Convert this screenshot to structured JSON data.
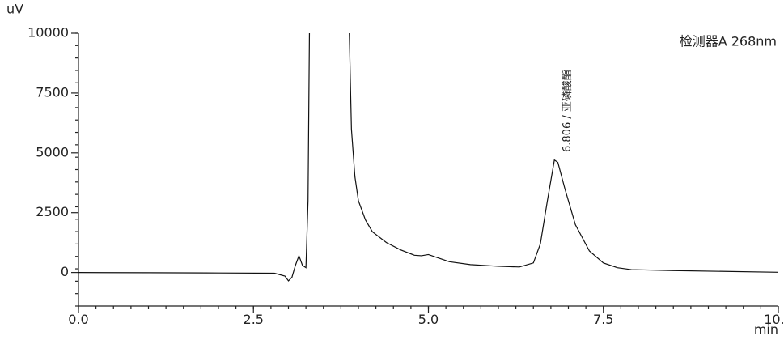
{
  "chart_data": {
    "type": "line",
    "y_label": "uV",
    "x_label": "min",
    "detector": "检测器A 268nm",
    "annotation": {
      "text": "6.806 / 亚磷酸酯",
      "x": 6.806
    },
    "xlim": [
      0,
      10
    ],
    "ylim": [
      -1400,
      10000
    ],
    "xticks": [
      {
        "value": 0,
        "label": "0.0"
      },
      2.5,
      {
        "value": 5,
        "label": "5.0"
      },
      7.5,
      {
        "value": 10,
        "label": "10.0"
      }
    ],
    "yticks": [
      0,
      2500,
      5000,
      7500,
      10000
    ],
    "series": [
      {
        "color": "#111111",
        "x": [
          0,
          1,
          2,
          2.8,
          2.95,
          3.0,
          3.05,
          3.1,
          3.15,
          3.2,
          3.25,
          3.28,
          3.3,
          3.6,
          3.87,
          3.9,
          3.95,
          4.0,
          4.1,
          4.2,
          4.4,
          4.6,
          4.8,
          4.9,
          5.0,
          5.1,
          5.3,
          5.6,
          6.0,
          6.3,
          6.5,
          6.6,
          6.7,
          6.8,
          6.85,
          6.95,
          7.1,
          7.3,
          7.5,
          7.7,
          7.9,
          8.5,
          10
        ],
        "values": [
          0,
          -10,
          -20,
          -30,
          -150,
          -350,
          -200,
          300,
          700,
          300,
          200,
          3000,
          10000,
          null,
          10000,
          6000,
          4000,
          3000,
          2200,
          1700,
          1250,
          950,
          720,
          700,
          750,
          650,
          450,
          330,
          260,
          230,
          400,
          1200,
          3000,
          4700,
          4600,
          3500,
          2000,
          900,
          400,
          200,
          120,
          80,
          10
        ]
      }
    ]
  }
}
